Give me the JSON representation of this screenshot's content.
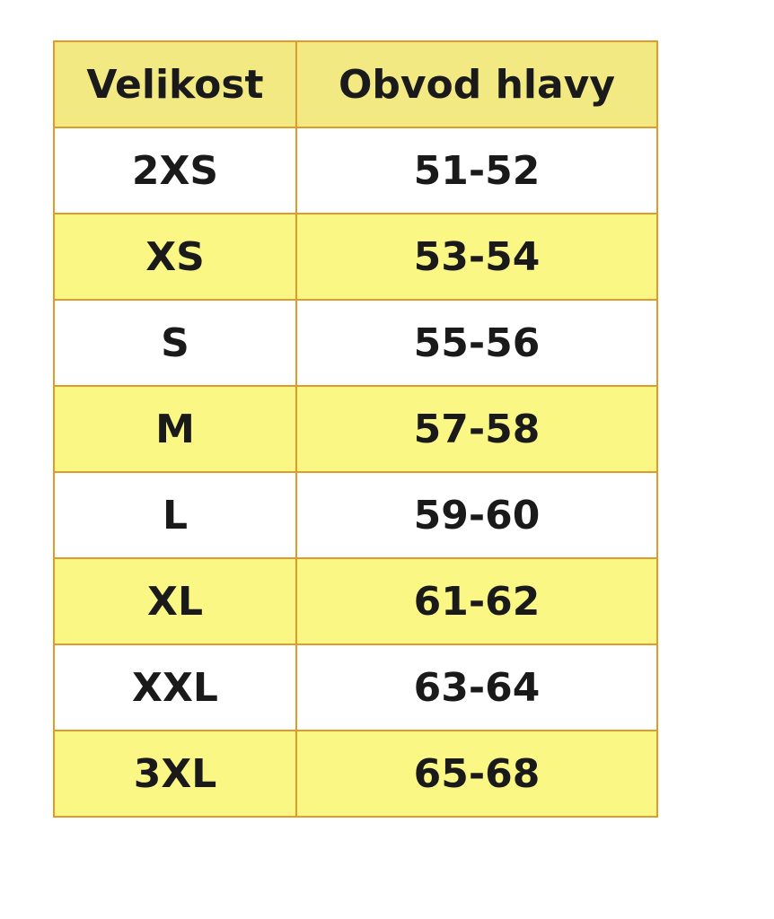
{
  "table": {
    "header": [
      "Velikost",
      "Obvod hlavy"
    ],
    "rows": [
      [
        "2XS",
        "51-52"
      ],
      [
        "XS",
        "53-54"
      ],
      [
        "S",
        "55-56"
      ],
      [
        "M",
        "57-58"
      ],
      [
        "L",
        "59-60"
      ],
      [
        "XL",
        "61-62"
      ],
      [
        "XXL",
        "63-64"
      ],
      [
        "3XL",
        "65-68"
      ]
    ]
  }
}
